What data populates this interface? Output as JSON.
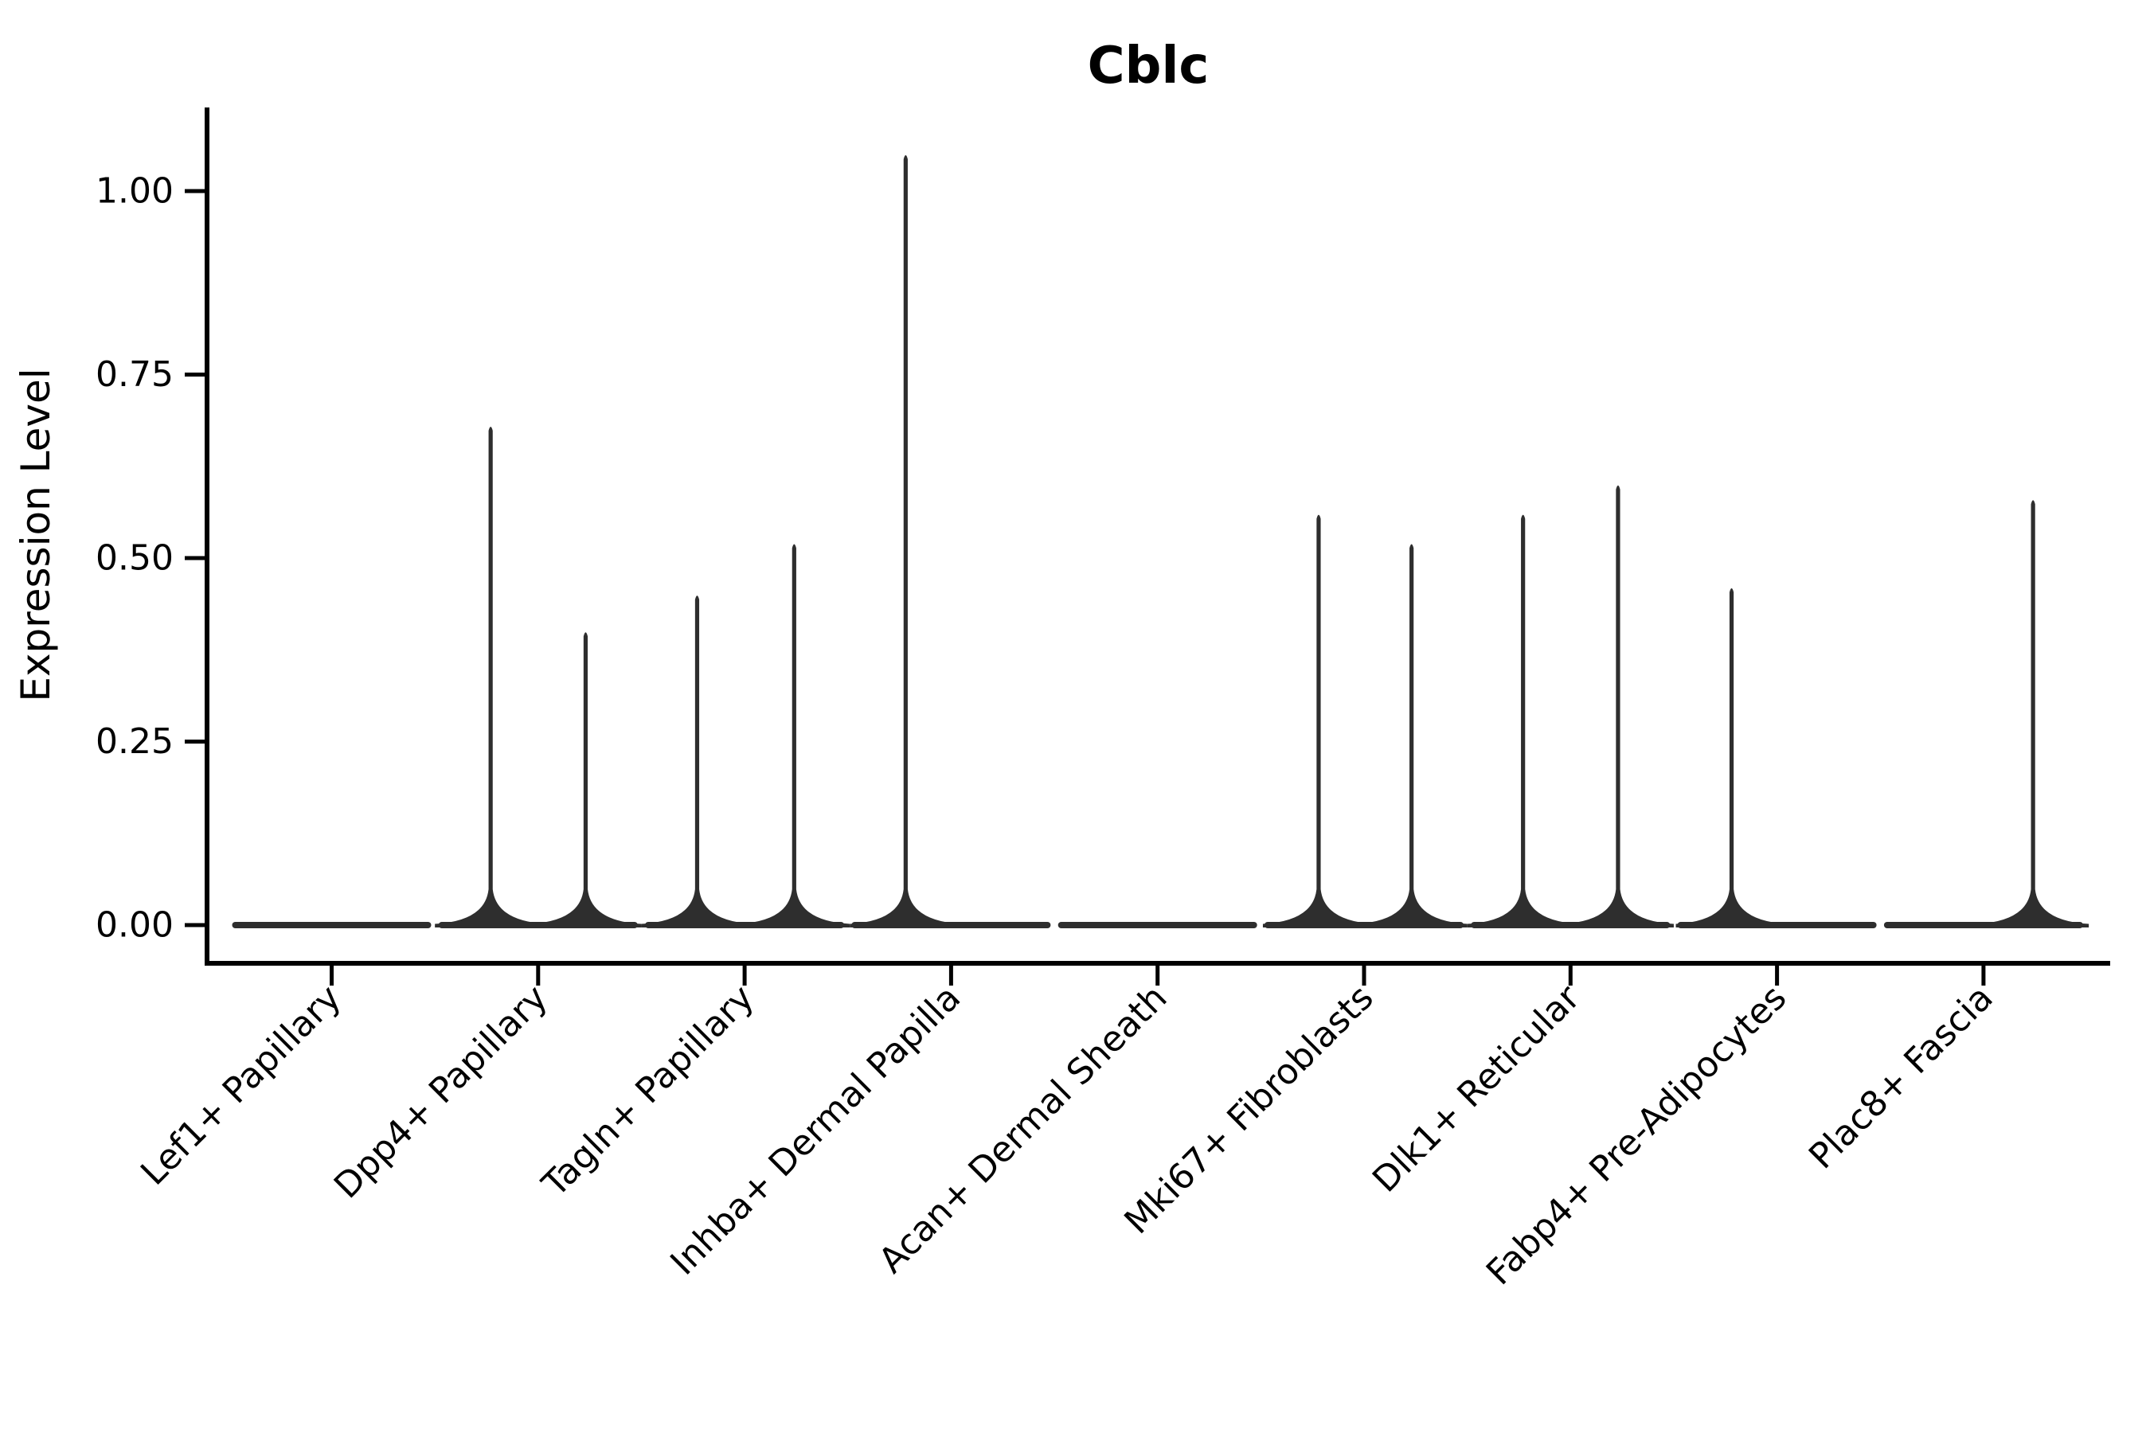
{
  "chart_data": {
    "type": "violin",
    "title": "Cblc",
    "title_style": "bold",
    "xlabel": "",
    "ylabel": "Expression Level",
    "background_color": "#ffffff",
    "axis_color": "#000000",
    "text_color": "#000000",
    "violin_color": "#2e2e2e",
    "grid": false,
    "legend": "none",
    "ylim": [
      0.0,
      1.11
    ],
    "ytick_values": [
      0.0,
      0.25,
      0.5,
      0.75,
      1.0
    ],
    "ytick_labels": [
      "0.00",
      "0.25",
      "0.50",
      "0.75",
      "1.00"
    ],
    "x_label_rotation_deg": 45,
    "categories": [
      "Lef1+ Papillary",
      "Dpp4+ Papillary",
      "Tagln+ Papillary",
      "Inhba+ Dermal Papilla",
      "Acan+ Dermal Sheath",
      "Mki67+ Fibroblasts",
      "Dlk1+ Reticular",
      "Fabp4+ Pre-Adipocytes",
      "Plac8+ Fascia"
    ],
    "violins": [
      {
        "category": "Lef1+ Papillary",
        "baseline_value": 0.0,
        "spikes": []
      },
      {
        "category": "Dpp4+ Papillary",
        "baseline_value": 0.0,
        "spikes": [
          {
            "offset": -0.23,
            "peak": 0.68
          },
          {
            "offset": 0.23,
            "peak": 0.4
          }
        ]
      },
      {
        "category": "Tagln+ Papillary",
        "baseline_value": 0.0,
        "spikes": [
          {
            "offset": -0.23,
            "peak": 0.45
          },
          {
            "offset": 0.24,
            "peak": 0.52
          }
        ]
      },
      {
        "category": "Inhba+ Dermal Papilla",
        "baseline_value": 0.0,
        "spikes": [
          {
            "offset": -0.22,
            "peak": 1.05
          }
        ]
      },
      {
        "category": "Acan+ Dermal Sheath",
        "baseline_value": 0.0,
        "spikes": []
      },
      {
        "category": "Mki67+ Fibroblasts",
        "baseline_value": 0.0,
        "spikes": [
          {
            "offset": -0.22,
            "peak": 0.56
          },
          {
            "offset": 0.23,
            "peak": 0.52
          }
        ]
      },
      {
        "category": "Dlk1+ Reticular",
        "baseline_value": 0.0,
        "spikes": [
          {
            "offset": -0.23,
            "peak": 0.56
          },
          {
            "offset": 0.23,
            "peak": 0.6
          }
        ]
      },
      {
        "category": "Fabp4+ Pre-Adipocytes",
        "baseline_value": 0.0,
        "spikes": [
          {
            "offset": -0.22,
            "peak": 0.46
          }
        ]
      },
      {
        "category": "Plac8+ Fascia",
        "baseline_value": 0.0,
        "spikes": [
          {
            "offset": 0.24,
            "peak": 0.58
          }
        ]
      }
    ]
  }
}
